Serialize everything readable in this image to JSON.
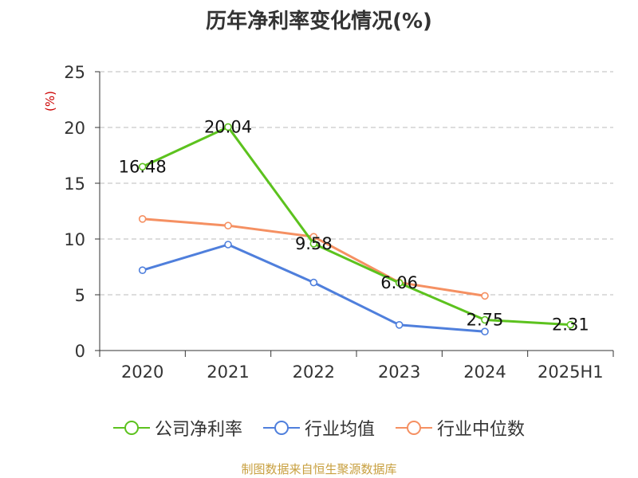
{
  "chart_data": {
    "type": "line",
    "title": "历年净利率变化情况(%)",
    "ylabel": "(%)",
    "categories": [
      "2020",
      "2021",
      "2022",
      "2023",
      "2024",
      "2025H1"
    ],
    "ylim": [
      0,
      25
    ],
    "yticks": [
      0,
      5,
      10,
      15,
      20,
      25
    ],
    "grid": true,
    "legend_position": "bottom",
    "series": [
      {
        "name": "公司净利率",
        "color": "#5cc21e",
        "values": [
          16.48,
          20.04,
          9.58,
          6.06,
          2.75,
          2.31
        ],
        "labels": [
          "16.48",
          "20.04",
          "9.58",
          "6.06",
          "2.75",
          "2.31"
        ]
      },
      {
        "name": "行业均值",
        "color": "#4f7fdc",
        "values": [
          7.2,
          9.5,
          6.1,
          2.3,
          1.7,
          null
        ]
      },
      {
        "name": "行业中位数",
        "color": "#f59062",
        "values": [
          11.8,
          11.2,
          10.2,
          6.1,
          4.9,
          null
        ]
      }
    ],
    "source": "制图数据来自恒生聚源数据库"
  }
}
